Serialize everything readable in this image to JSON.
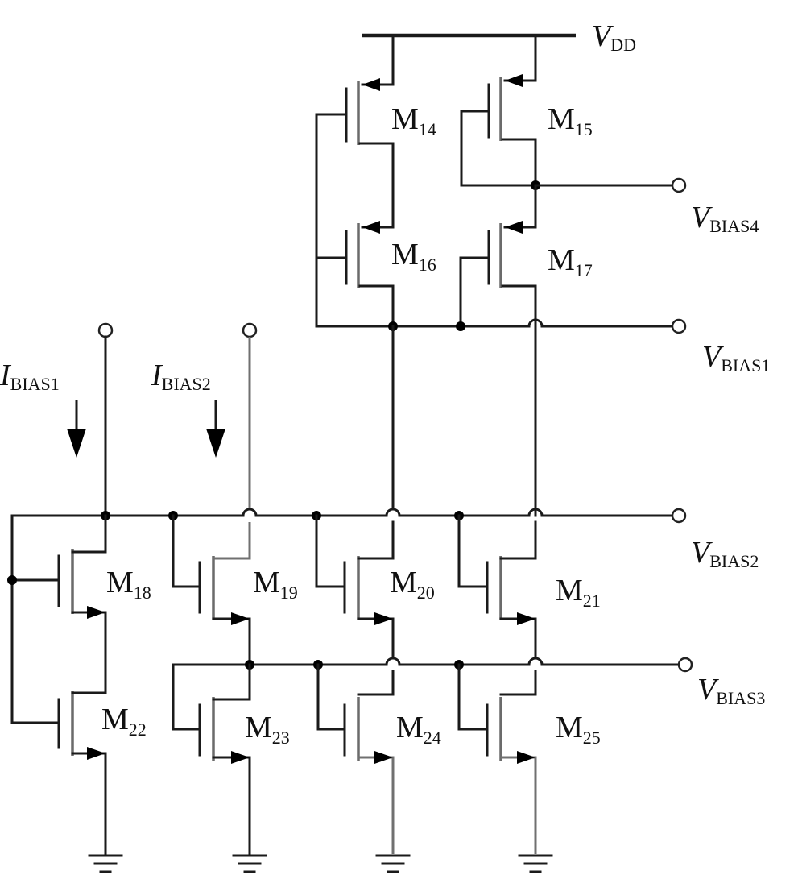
{
  "supply": {
    "name": "V",
    "sub": "DD"
  },
  "bias_voltages": [
    {
      "id": "vbias4",
      "name": "V",
      "sub": "BIAS4"
    },
    {
      "id": "vbias1",
      "name": "V",
      "sub": "BIAS1"
    },
    {
      "id": "vbias2",
      "name": "V",
      "sub": "BIAS2"
    },
    {
      "id": "vbias3",
      "name": "V",
      "sub": "BIAS3"
    }
  ],
  "bias_currents": [
    {
      "id": "ibias1",
      "name": "I",
      "sub": "BIAS1"
    },
    {
      "id": "ibias2",
      "name": "I",
      "sub": "BIAS2"
    }
  ],
  "transistors": [
    {
      "id": "M14",
      "name": "M",
      "sub": "14",
      "type": "pmos"
    },
    {
      "id": "M15",
      "name": "M",
      "sub": "15",
      "type": "pmos"
    },
    {
      "id": "M16",
      "name": "M",
      "sub": "16",
      "type": "pmos"
    },
    {
      "id": "M17",
      "name": "M",
      "sub": "17",
      "type": "pmos"
    },
    {
      "id": "M18",
      "name": "M",
      "sub": "18",
      "type": "nmos"
    },
    {
      "id": "M19",
      "name": "M",
      "sub": "19",
      "type": "nmos"
    },
    {
      "id": "M20",
      "name": "M",
      "sub": "20",
      "type": "nmos"
    },
    {
      "id": "M21",
      "name": "M",
      "sub": "21",
      "type": "nmos"
    },
    {
      "id": "M22",
      "name": "M",
      "sub": "22",
      "type": "nmos"
    },
    {
      "id": "M23",
      "name": "M",
      "sub": "23",
      "type": "nmos"
    },
    {
      "id": "M24",
      "name": "M",
      "sub": "24",
      "type": "nmos"
    },
    {
      "id": "M25",
      "name": "M",
      "sub": "25",
      "type": "nmos"
    }
  ]
}
